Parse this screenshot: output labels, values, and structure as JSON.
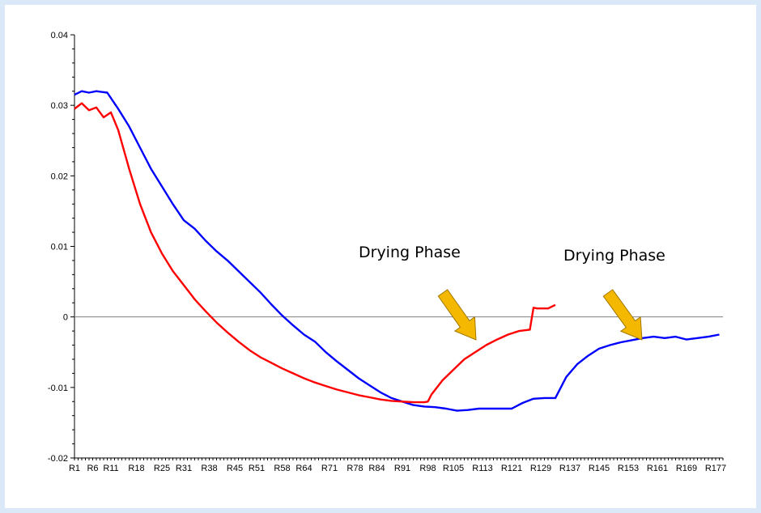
{
  "chart_data": {
    "type": "line",
    "title": "",
    "xlabel": "",
    "ylabel": "",
    "ylim": [
      -0.02,
      0.04
    ],
    "yticks": [
      "0.04",
      "0.03",
      "0.02",
      "0.01",
      "0",
      "-0.01",
      "-0.02"
    ],
    "x_tick_labels": [
      "R1",
      "R6",
      "R11",
      "R18",
      "R25",
      "R31",
      "R38",
      "R45",
      "R51",
      "R58",
      "R64",
      "R71",
      "R78",
      "R84",
      "R91",
      "R98",
      "R105",
      "R113",
      "R121",
      "R129",
      "R137",
      "R145",
      "R153",
      "R161",
      "R169",
      "R177"
    ],
    "legend": "none",
    "grid": false,
    "series": [
      {
        "color": "#0000ff",
        "x": [
          1,
          3,
          5,
          7,
          10,
          13,
          16,
          19,
          22,
          25,
          28,
          31,
          34,
          37,
          40,
          43,
          46,
          49,
          52,
          55,
          58,
          61,
          64,
          67,
          70,
          73,
          76,
          79,
          82,
          85,
          88,
          91,
          94,
          97,
          100,
          103,
          106,
          109,
          112,
          115,
          118,
          121,
          124,
          127,
          130,
          133,
          136,
          139,
          142,
          145,
          148,
          151,
          154,
          157,
          160,
          163,
          166,
          169,
          172,
          175,
          178
        ],
        "y": [
          0.0315,
          0.032,
          0.0318,
          0.032,
          0.0318,
          0.0295,
          0.027,
          0.024,
          0.021,
          0.0185,
          0.016,
          0.0137,
          0.0125,
          0.0108,
          0.0093,
          0.008,
          0.0065,
          0.005,
          0.0035,
          0.0018,
          0.0002,
          -0.0012,
          -0.0025,
          -0.0035,
          -0.005,
          -0.0063,
          -0.0075,
          -0.0087,
          -0.0097,
          -0.0107,
          -0.0115,
          -0.012,
          -0.0125,
          -0.0127,
          -0.0128,
          -0.013,
          -0.0133,
          -0.0132,
          -0.013,
          -0.013,
          -0.013,
          -0.013,
          -0.0122,
          -0.0116,
          -0.0115,
          -0.0115,
          -0.0085,
          -0.0067,
          -0.0055,
          -0.0045,
          -0.004,
          -0.0036,
          -0.0033,
          -0.003,
          -0.0028,
          -0.003,
          -0.0028,
          -0.0032,
          -0.003,
          -0.0028,
          -0.0025
        ]
      },
      {
        "color": "#ff0000",
        "x": [
          1,
          3,
          5,
          7,
          9,
          11,
          13,
          16,
          19,
          22,
          25,
          28,
          31,
          34,
          37,
          40,
          43,
          46,
          49,
          52,
          55,
          58,
          61,
          64,
          67,
          70,
          73,
          76,
          79,
          82,
          85,
          88,
          91,
          94,
          97,
          98,
          99,
          102,
          105,
          108,
          111,
          114,
          117,
          120,
          123,
          126,
          127,
          128,
          129,
          131,
          133
        ],
        "y": [
          0.0295,
          0.0303,
          0.0293,
          0.0297,
          0.0283,
          0.029,
          0.0265,
          0.021,
          0.016,
          0.012,
          0.009,
          0.0065,
          0.0045,
          0.0025,
          0.0008,
          -0.0008,
          -0.0022,
          -0.0035,
          -0.0047,
          -0.0057,
          -0.0065,
          -0.0073,
          -0.008,
          -0.0087,
          -0.0093,
          -0.0098,
          -0.0103,
          -0.0107,
          -0.0111,
          -0.0114,
          -0.0117,
          -0.0119,
          -0.012,
          -0.0121,
          -0.0121,
          -0.012,
          -0.011,
          -0.009,
          -0.0075,
          -0.006,
          -0.005,
          -0.004,
          -0.0032,
          -0.0025,
          -0.002,
          -0.0018,
          0.0013,
          0.0012,
          0.0012,
          0.0012,
          0.0017
        ]
      }
    ],
    "annotations": [
      {
        "text": "Drying Phase",
        "arrow_color": "#f5b800"
      },
      {
        "text": "Drying Phase",
        "arrow_color": "#f5b800"
      }
    ]
  }
}
